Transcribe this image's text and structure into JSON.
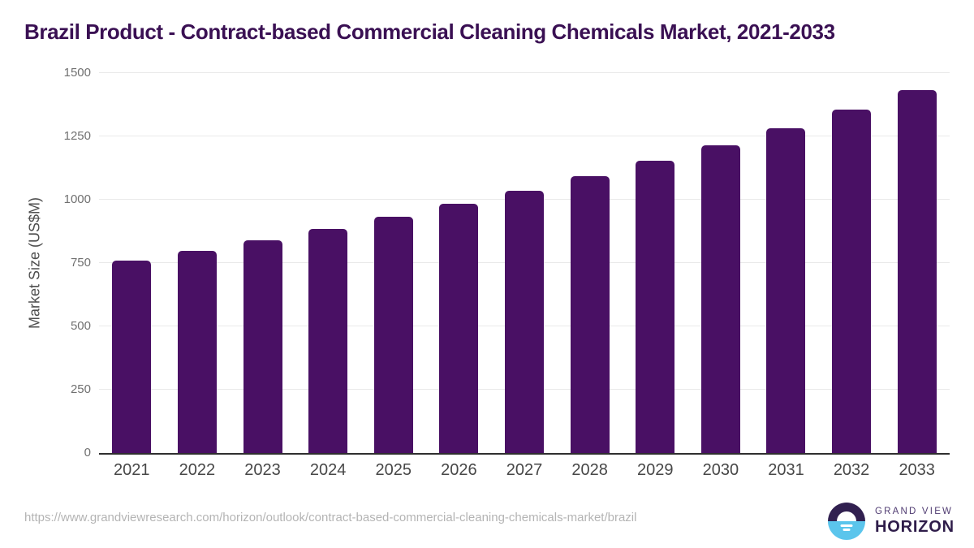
{
  "chart_data": {
    "type": "bar",
    "title": "Brazil Product - Contract-based Commercial Cleaning Chemicals Market, 2021-2033",
    "xlabel": "",
    "ylabel": "Market Size (US$M)",
    "categories": [
      "2021",
      "2022",
      "2023",
      "2024",
      "2025",
      "2026",
      "2027",
      "2028",
      "2029",
      "2030",
      "2031",
      "2032",
      "2033"
    ],
    "values": [
      760,
      798,
      841,
      886,
      933,
      985,
      1036,
      1094,
      1153,
      1216,
      1282,
      1355,
      1432
    ],
    "ylim": [
      0,
      1500
    ],
    "yticks": [
      0,
      250,
      500,
      750,
      1000,
      1250,
      1500
    ],
    "grid": true,
    "legend": false
  },
  "colors": {
    "bar": "#491064",
    "title": "#3a1053",
    "gridline": "#e9e9e9",
    "axis_line": "#2f2f2f",
    "y_tick_label": "#707070",
    "x_tick_label": "#474747",
    "y_axis_title": "#4f4f4f",
    "url": "#b4b4b4",
    "logo_navy": "#312050",
    "logo_blue": "#5bc5ec",
    "logo_grand_view": "#503c72",
    "logo_horizon": "#2f1d4a"
  },
  "footer": {
    "source_url": "https://www.grandviewresearch.com/horizon/outlook/contract-based-commercial-cleaning-chemicals-market/brazil",
    "logo": {
      "top": "GRAND VIEW",
      "bottom": "HORIZON"
    }
  }
}
